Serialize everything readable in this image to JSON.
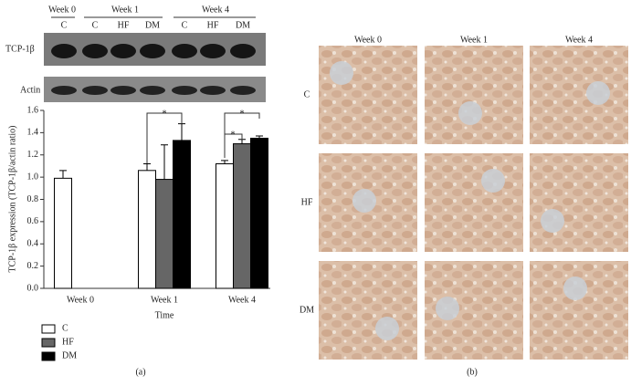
{
  "blot": {
    "groups": [
      "Week 0",
      "Week 1",
      "Week 4"
    ],
    "lanes": [
      "C",
      "C",
      "HF",
      "DM",
      "C",
      "HF",
      "DM"
    ],
    "rows": [
      "TCP-1β",
      "Actin"
    ]
  },
  "chart_data": {
    "type": "bar",
    "ylabel": "TCP-1β expression (TCP-1β/actin ratio)",
    "xlabel": "Time",
    "categories": [
      "Week 0",
      "Week 1",
      "Week 4"
    ],
    "series": [
      {
        "name": "C",
        "color": "#ffffff",
        "values": [
          0.99,
          1.06,
          1.12
        ],
        "errors": [
          0.07,
          0.06,
          0.03
        ]
      },
      {
        "name": "HF",
        "color": "#666666",
        "values": [
          null,
          0.98,
          1.3
        ],
        "errors": [
          null,
          0.31,
          0.04
        ]
      },
      {
        "name": "DM",
        "color": "#000000",
        "values": [
          null,
          1.33,
          1.35
        ],
        "errors": [
          null,
          0.15,
          0.02
        ]
      }
    ],
    "ylim": [
      0,
      1.6
    ],
    "yticks": [
      {
        "value": 0,
        "label": "0.0"
      },
      0.2,
      0.4,
      0.6,
      0.8,
      {
        "value": 1,
        "label": "1.0"
      },
      1.2,
      1.4,
      1.6
    ],
    "significance": [
      "*",
      "*",
      "*",
      "*"
    ],
    "panel_label": "(a)"
  },
  "histology": {
    "columns": [
      "Week 0",
      "Week 1",
      "Week 4"
    ],
    "rows": [
      "C",
      "HF",
      "DM"
    ],
    "panel_label": "(b)"
  }
}
